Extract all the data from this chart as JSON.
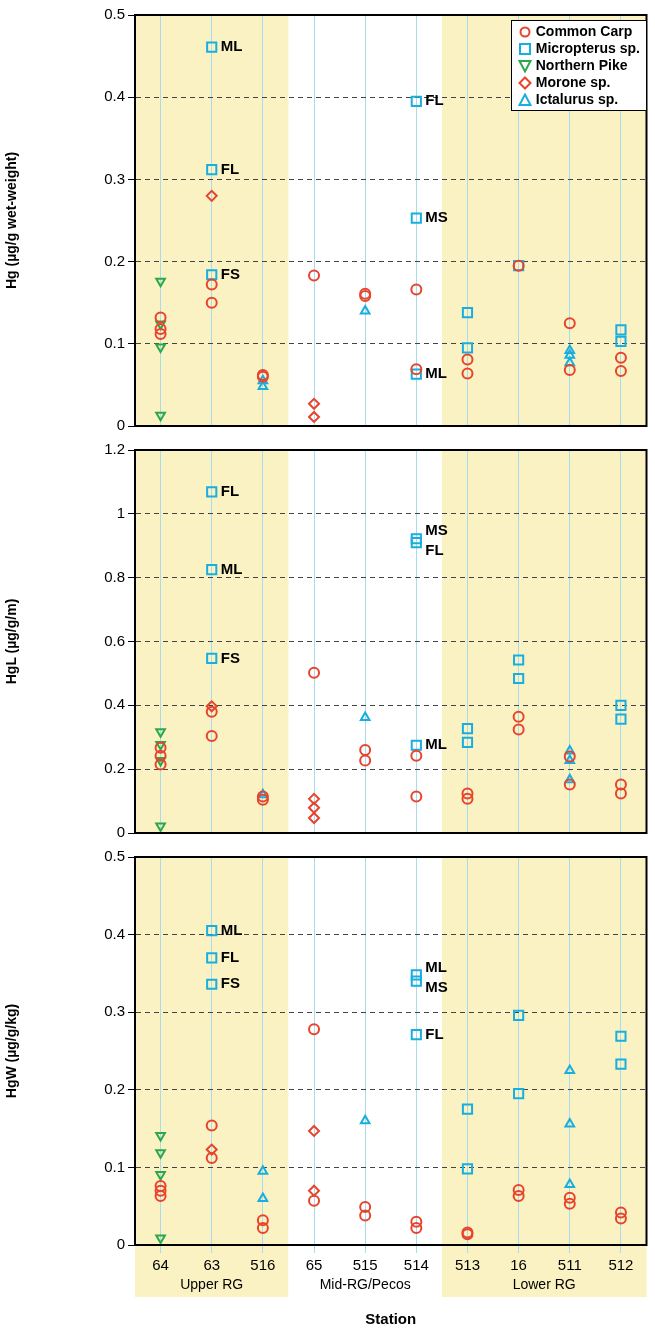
{
  "chart_data": [
    {
      "type": "scatter",
      "categories": [
        "64",
        "63",
        "516",
        "65",
        "515",
        "514",
        "513",
        "16",
        "511",
        "512"
      ],
      "ylabel": "Hg (µg/g wet-weight)",
      "ylim": [
        0,
        0.5
      ],
      "yticks": [
        0,
        0.1,
        0.2,
        0.3,
        0.4,
        0.5
      ],
      "grid": true,
      "tick_labels": "y",
      "legend": "top right",
      "bands": [
        {
          "axis": "x",
          "from": "64",
          "to": "516",
          "color": "#faf2c2"
        },
        {
          "axis": "x",
          "from": "513",
          "to": "512",
          "color": "#faf2c2"
        }
      ],
      "annotations": [
        {
          "text": "ML",
          "x": "63",
          "y": 0.461
        },
        {
          "text": "FL",
          "x": "63",
          "y": 0.312
        },
        {
          "text": "FS",
          "x": "63",
          "y": 0.184
        },
        {
          "text": "FL",
          "x": "514",
          "y": 0.395
        },
        {
          "text": "MS",
          "x": "514",
          "y": 0.253
        },
        {
          "text": "ML",
          "x": "514",
          "y": 0.063
        }
      ],
      "series": [
        {
          "name": "Common Carp",
          "color": "#e8432c",
          "marker": "circle",
          "x": [
            "64",
            "64",
            "64",
            "63",
            "63",
            "516",
            "516",
            "65",
            "515",
            "515",
            "514",
            "514",
            "513",
            "513",
            "16",
            "511",
            "511",
            "512",
            "512"
          ],
          "values": [
            0.132,
            0.118,
            0.112,
            0.172,
            0.15,
            0.062,
            0.06,
            0.183,
            0.161,
            0.158,
            0.166,
            0.069,
            0.081,
            0.064,
            0.195,
            0.125,
            0.068,
            0.083,
            0.067
          ]
        },
        {
          "name": "Micropterus sp.",
          "color": "#19aee0",
          "marker": "square",
          "x": [
            "63",
            "63",
            "63",
            "514",
            "514",
            "514",
            "513",
            "513",
            "16",
            "512",
            "512"
          ],
          "values": [
            0.461,
            0.312,
            0.184,
            0.395,
            0.253,
            0.063,
            0.138,
            0.095,
            0.195,
            0.117,
            0.103
          ]
        },
        {
          "name": "Northern Pike",
          "color": "#2aa84a",
          "marker": "triangle-down",
          "x": [
            "64",
            "64",
            "64",
            "64"
          ],
          "values": [
            0.176,
            0.124,
            0.096,
            0.013
          ]
        },
        {
          "name": "Morone sp.",
          "color": "#e8432c",
          "marker": "diamond",
          "x": [
            "63",
            "65",
            "65"
          ],
          "values": [
            0.28,
            0.027,
            0.011
          ]
        },
        {
          "name": "Ictalurus sp.",
          "color": "#19aee0",
          "marker": "triangle",
          "x": [
            "516",
            "516",
            "515",
            "511",
            "511",
            "511"
          ],
          "values": [
            0.055,
            0.048,
            0.14,
            0.092,
            0.086,
            0.077
          ]
        }
      ]
    },
    {
      "type": "scatter",
      "categories": [
        "64",
        "63",
        "516",
        "65",
        "515",
        "514",
        "513",
        "16",
        "511",
        "512"
      ],
      "ylabel": "HgL (µg/g/m)",
      "ylim": [
        0,
        1.2
      ],
      "yticks": [
        0,
        0.2,
        0.4,
        0.6,
        0.8,
        1,
        1.2
      ],
      "grid": true,
      "tick_labels": "y",
      "bands": [
        {
          "axis": "x",
          "from": "64",
          "to": "516",
          "color": "#faf2c2"
        },
        {
          "axis": "x",
          "from": "513",
          "to": "512",
          "color": "#faf2c2"
        }
      ],
      "annotations": [
        {
          "text": "FL",
          "x": "63",
          "y": 1.069
        },
        {
          "text": "ML",
          "x": "63",
          "y": 0.825
        },
        {
          "text": "FS",
          "x": "63",
          "y": 0.547
        },
        {
          "text": "MS",
          "x": "514",
          "y": 0.922
        },
        {
          "text": "FL",
          "x": "514",
          "y": 0.91
        },
        {
          "text": "ML",
          "x": "514",
          "y": 0.275
        }
      ],
      "series": [
        {
          "color": "#e8432c",
          "marker": "circle",
          "x": [
            "64",
            "64",
            "64",
            "63",
            "63",
            "516",
            "516",
            "65",
            "515",
            "515",
            "514",
            "514",
            "513",
            "513",
            "16",
            "16",
            "511",
            "511",
            "512",
            "512"
          ],
          "values": [
            0.267,
            0.242,
            0.215,
            0.38,
            0.304,
            0.114,
            0.104,
            0.502,
            0.26,
            0.227,
            0.242,
            0.114,
            0.124,
            0.107,
            0.364,
            0.324,
            0.24,
            0.152,
            0.152,
            0.124
          ]
        },
        {
          "color": "#19aee0",
          "marker": "square",
          "x": [
            "63",
            "63",
            "63",
            "514",
            "514",
            "514",
            "513",
            "513",
            "16",
            "16",
            "512",
            "512"
          ],
          "values": [
            1.069,
            0.825,
            0.547,
            0.922,
            0.91,
            0.275,
            0.327,
            0.284,
            0.542,
            0.484,
            0.4,
            0.357
          ]
        },
        {
          "color": "#2aa84a",
          "marker": "triangle-down",
          "x": [
            "64",
            "64",
            "64",
            "64"
          ],
          "values": [
            0.317,
            0.277,
            0.227,
            0.022
          ]
        },
        {
          "color": "#e8432c",
          "marker": "diamond",
          "x": [
            "63",
            "65",
            "65",
            "65"
          ],
          "values": [
            0.397,
            0.107,
            0.079,
            0.047
          ]
        },
        {
          "color": "#19aee0",
          "marker": "triangle",
          "x": [
            "516",
            "515",
            "511",
            "511",
            "511"
          ],
          "values": [
            0.12,
            0.362,
            0.257,
            0.227,
            0.167
          ]
        }
      ]
    },
    {
      "type": "scatter",
      "categories": [
        "64",
        "63",
        "516",
        "65",
        "515",
        "514",
        "513",
        "16",
        "511",
        "512"
      ],
      "xlabel": "Station",
      "ylabel": "HgW (µg/g/kg)",
      "ylim": [
        0,
        0.5
      ],
      "yticks": [
        0,
        0.1,
        0.2,
        0.3,
        0.4,
        0.5
      ],
      "grid": true,
      "bands": [
        {
          "axis": "x",
          "from": "64",
          "to": "516",
          "label": "Upper RG",
          "color": "#faf2c2"
        },
        {
          "axis": "x",
          "from": "65",
          "to": "514",
          "label": "Mid-RG/Pecos",
          "color": "#ffffff"
        },
        {
          "axis": "x",
          "from": "513",
          "to": "512",
          "label": "Lower RG",
          "color": "#faf2c2"
        }
      ],
      "annotations": [
        {
          "text": "ML",
          "x": "63",
          "y": 0.405
        },
        {
          "text": "FL",
          "x": "63",
          "y": 0.37
        },
        {
          "text": "FS",
          "x": "63",
          "y": 0.336
        },
        {
          "text": "ML",
          "x": "514",
          "y": 0.348
        },
        {
          "text": "MS",
          "x": "514",
          "y": 0.34
        },
        {
          "text": "FL",
          "x": "514",
          "y": 0.271
        }
      ],
      "series": [
        {
          "color": "#e8432c",
          "marker": "circle",
          "x": [
            "64",
            "64",
            "64",
            "63",
            "63",
            "516",
            "516",
            "65",
            "65",
            "515",
            "515",
            "514",
            "514",
            "513",
            "513",
            "16",
            "16",
            "511",
            "511",
            "512",
            "512"
          ],
          "values": [
            0.076,
            0.07,
            0.063,
            0.154,
            0.112,
            0.032,
            0.022,
            0.278,
            0.057,
            0.049,
            0.038,
            0.03,
            0.022,
            0.016,
            0.014,
            0.071,
            0.063,
            0.061,
            0.053,
            0.042,
            0.034
          ]
        },
        {
          "color": "#19aee0",
          "marker": "square",
          "x": [
            "63",
            "63",
            "63",
            "514",
            "514",
            "514",
            "513",
            "513",
            "16",
            "16",
            "512",
            "512"
          ],
          "values": [
            0.405,
            0.37,
            0.336,
            0.348,
            0.34,
            0.271,
            0.175,
            0.098,
            0.296,
            0.195,
            0.269,
            0.233
          ]
        },
        {
          "color": "#2aa84a",
          "marker": "triangle-down",
          "x": [
            "64",
            "64",
            "64",
            "64"
          ],
          "values": [
            0.141,
            0.119,
            0.091,
            0.009
          ]
        },
        {
          "color": "#e8432c",
          "marker": "diamond",
          "x": [
            "63",
            "65",
            "65"
          ],
          "values": [
            0.123,
            0.147,
            0.07
          ]
        },
        {
          "color": "#19aee0",
          "marker": "triangle",
          "x": [
            "516",
            "516",
            "515",
            "511",
            "511",
            "511"
          ],
          "values": [
            0.095,
            0.06,
            0.16,
            0.225,
            0.156,
            0.078
          ]
        }
      ]
    }
  ]
}
